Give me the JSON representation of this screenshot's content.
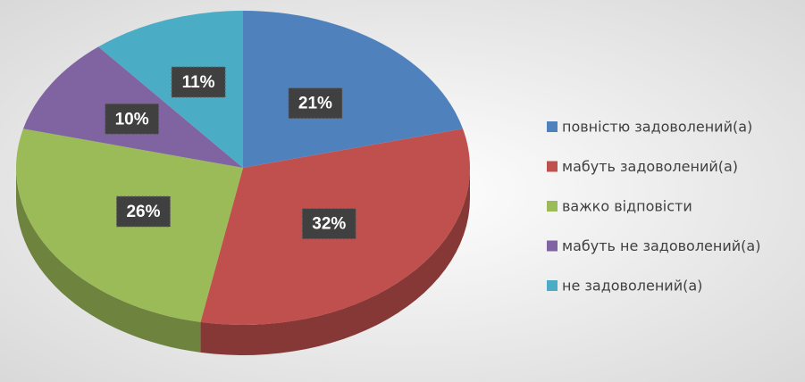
{
  "chart_data": {
    "type": "pie",
    "categories": [
      "повністю задоволений(а)",
      "мабуть задоволений(а)",
      "важко відповісти",
      "мабуть не задоволений(а)",
      "не задоволений(а)"
    ],
    "values": [
      21,
      32,
      26,
      10,
      11
    ],
    "value_labels": [
      "21%",
      "32%",
      "26%",
      "10%",
      "11%"
    ],
    "colors": [
      "#4f81bd",
      "#c0504d",
      "#9bbb59",
      "#8064a2",
      "#4bacc6"
    ],
    "legend": "right"
  }
}
